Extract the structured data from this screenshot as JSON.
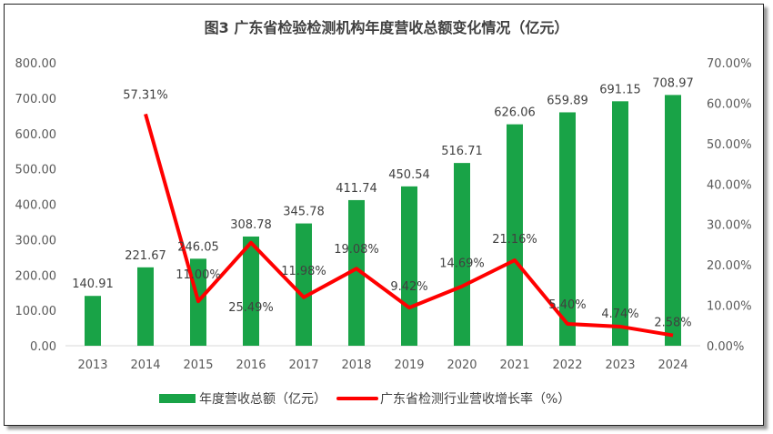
{
  "chart_data": {
    "type": "bar+line",
    "title": "图3 广东省检验检测机构年度营收总额变化情况（亿元）",
    "categories": [
      "2013",
      "2014",
      "2015",
      "2016",
      "2017",
      "2018",
      "2019",
      "2020",
      "2021",
      "2022",
      "2023",
      "2024"
    ],
    "series": [
      {
        "name": "年度营收总额（亿元）",
        "type": "bar",
        "axis": "left",
        "color": "#19A347",
        "values": [
          140.91,
          221.67,
          246.05,
          308.78,
          345.78,
          411.74,
          450.54,
          516.71,
          626.06,
          659.89,
          691.15,
          708.97
        ],
        "labels": [
          "140.91",
          "221.67",
          "246.05",
          "308.78",
          "345.78",
          "411.74",
          "450.54",
          "516.71",
          "626.06",
          "659.89",
          "691.15",
          "708.97"
        ]
      },
      {
        "name": "广东省检测行业营收增长率（%）",
        "type": "line",
        "axis": "right",
        "color": "#FF0000",
        "values": [
          null,
          57.31,
          11.0,
          25.49,
          11.98,
          19.08,
          9.42,
          14.69,
          21.16,
          5.4,
          4.74,
          2.58
        ],
        "labels": [
          null,
          "57.31%",
          "11.00%",
          "25.49%",
          "11.98%",
          "19.08%",
          "9.42%",
          "14.69%",
          "21.16%",
          "5.40%",
          "4.74%",
          "2.58%"
        ]
      }
    ],
    "y_left": {
      "range": [
        0,
        800
      ],
      "ticks": [
        "0.00",
        "100.00",
        "200.00",
        "300.00",
        "400.00",
        "500.00",
        "600.00",
        "700.00",
        "800.00"
      ]
    },
    "y_right": {
      "range": [
        0,
        70
      ],
      "ticks": [
        "0.00%",
        "10.00%",
        "20.00%",
        "30.00%",
        "40.00%",
        "50.00%",
        "60.00%",
        "70.00%"
      ]
    },
    "grid": false,
    "legend": "bottom"
  }
}
